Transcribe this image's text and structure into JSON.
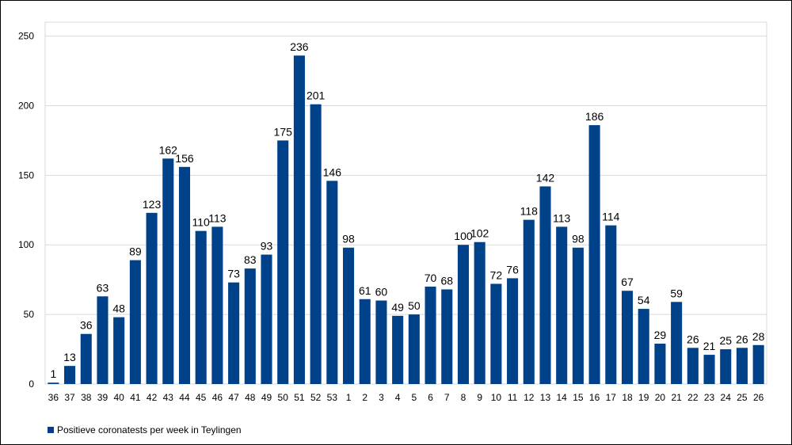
{
  "chart_data": {
    "type": "bar",
    "categories": [
      "36",
      "37",
      "38",
      "39",
      "40",
      "41",
      "42",
      "43",
      "44",
      "45",
      "46",
      "47",
      "48",
      "49",
      "50",
      "51",
      "52",
      "53",
      "1",
      "2",
      "3",
      "4",
      "5",
      "6",
      "7",
      "8",
      "9",
      "10",
      "11",
      "12",
      "13",
      "14",
      "15",
      "16",
      "17",
      "18",
      "19",
      "20",
      "21",
      "22",
      "23",
      "24",
      "25",
      "26"
    ],
    "series": [
      {
        "name": "Positieve coronatests per week in Teylingen",
        "values": [
          1,
          13,
          36,
          63,
          48,
          89,
          123,
          162,
          156,
          110,
          113,
          73,
          83,
          93,
          175,
          236,
          201,
          146,
          98,
          61,
          60,
          49,
          50,
          70,
          68,
          100,
          102,
          72,
          76,
          118,
          142,
          113,
          98,
          186,
          114,
          67,
          54,
          29,
          59,
          26,
          21,
          25,
          26,
          28
        ]
      }
    ],
    "ylim": [
      0,
      260
    ],
    "yticks": [
      "0",
      "50",
      "100",
      "150",
      "200",
      "250"
    ],
    "xlabel": "",
    "ylabel": "",
    "grid": true,
    "legend_position": "bottom-left",
    "bar_color": "#004289"
  }
}
